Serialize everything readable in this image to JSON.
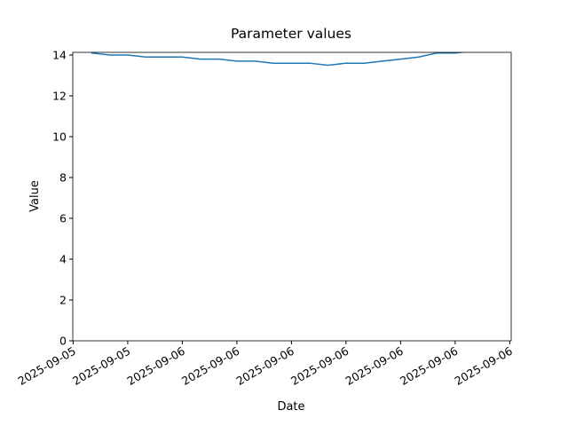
{
  "chart_data": {
    "type": "line",
    "title": "Parameter values",
    "x_label": "Date",
    "y_label": "Value",
    "categories": [
      null,
      null,
      null,
      null,
      null,
      null,
      null,
      null,
      null,
      null,
      null,
      null,
      null,
      null,
      null,
      null,
      null,
      null,
      null,
      null,
      null,
      null,
      null
    ],
    "series": [
      {
        "name": "Value",
        "color": "#1f77b4",
        "values": [
          14.1,
          14.0,
          14.0,
          13.9,
          13.9,
          13.9,
          13.8,
          13.8,
          13.7,
          13.7,
          13.6,
          13.6,
          13.6,
          13.5,
          13.6,
          13.6,
          13.7,
          13.8,
          13.9,
          14.1,
          14.1,
          14.2,
          14.2
        ]
      }
    ],
    "xlim": [
      -1.02,
      23.08
    ],
    "xticks": [
      {
        "value": -1,
        "label": "2025-09-05"
      },
      {
        "value": 2,
        "label": "2025-09-05"
      },
      {
        "value": 5,
        "label": "2025-09-06"
      },
      {
        "value": 8,
        "label": "2025-09-06"
      },
      {
        "value": 11,
        "label": "2025-09-06"
      },
      {
        "value": 14,
        "label": "2025-09-06"
      },
      {
        "value": 17,
        "label": "2025-09-06"
      },
      {
        "value": 20,
        "label": "2025-09-06"
      },
      {
        "value": 23,
        "label": "2025-09-06"
      }
    ],
    "ylim": [
      0,
      14.13
    ],
    "yticks": [
      0,
      2,
      4,
      6,
      8,
      10,
      12,
      14
    ],
    "grid": false
  }
}
